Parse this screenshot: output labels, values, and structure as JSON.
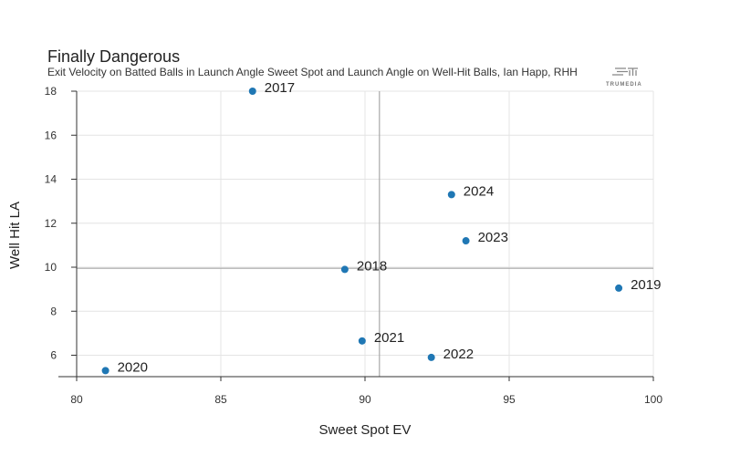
{
  "chart_data": {
    "type": "scatter",
    "title": "Finally Dangerous",
    "subtitle": "Exit Velocity on Batted Balls in Launch Angle Sweet Spot and Launch Angle on Well-Hit Balls, Ian Happ, RHH",
    "xlabel": "Sweet Spot EV",
    "ylabel": "Well Hit LA",
    "xlim": [
      80,
      100
    ],
    "ylim": [
      5,
      18
    ],
    "x_ticks": [
      80,
      85,
      90,
      95,
      100
    ],
    "y_ticks": [
      6,
      8,
      10,
      12,
      14,
      16,
      18
    ],
    "grid": true,
    "reference_lines": {
      "x": 90.5,
      "y": 9.95
    },
    "point_color": "#1f77b4",
    "points": [
      {
        "label": "2017",
        "x": 86.1,
        "y": 18.0
      },
      {
        "label": "2018",
        "x": 89.3,
        "y": 9.9
      },
      {
        "label": "2019",
        "x": 98.8,
        "y": 9.05
      },
      {
        "label": "2020",
        "x": 81.0,
        "y": 5.3
      },
      {
        "label": "2021",
        "x": 89.9,
        "y": 6.65
      },
      {
        "label": "2022",
        "x": 92.3,
        "y": 5.9
      },
      {
        "label": "2023",
        "x": 93.5,
        "y": 11.2
      },
      {
        "label": "2024",
        "x": 93.0,
        "y": 13.3
      }
    ]
  },
  "logo": {
    "text": "TRUMEDIA",
    "icon": "trumedia-logo-icon"
  }
}
